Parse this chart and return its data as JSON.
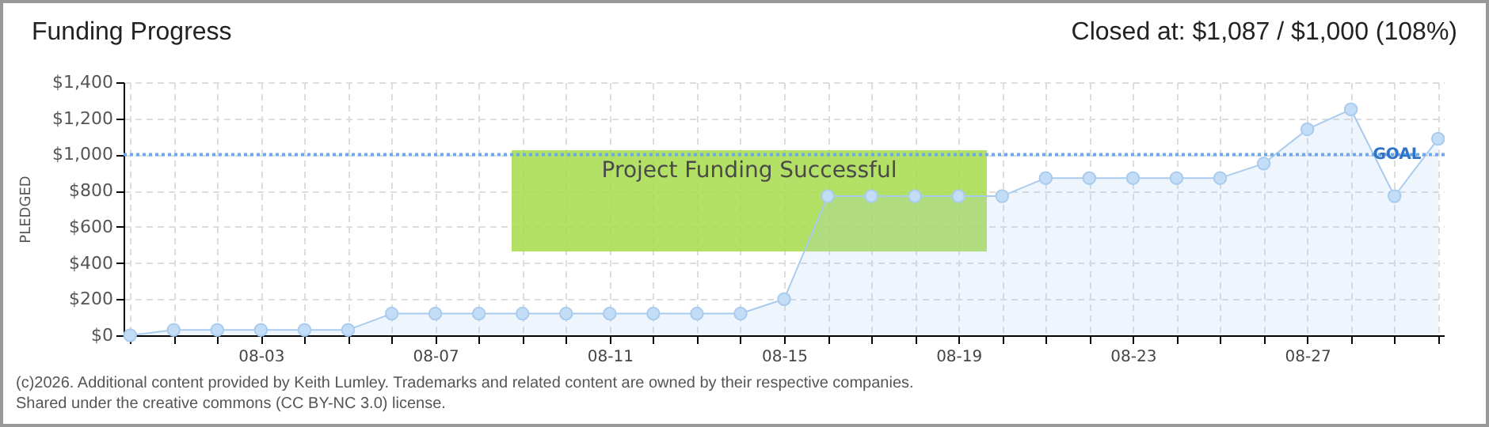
{
  "chart_data": {
    "type": "area",
    "title": "Funding Progress",
    "subtitle": "Closed at: $1,087 / $1,000 (108%)",
    "ylabel": "PLEDGED",
    "categories": [
      null,
      null,
      null,
      "08-03",
      null,
      null,
      null,
      "08-07",
      null,
      null,
      null,
      "08-11",
      null,
      null,
      null,
      "08-15",
      null,
      null,
      null,
      "08-19",
      null,
      null,
      null,
      "08-23",
      null,
      null,
      null,
      "08-27",
      null,
      null,
      null
    ],
    "series": [
      {
        "color": "#a9cbee",
        "values": [
          0,
          30,
          30,
          30,
          30,
          30,
          120,
          120,
          120,
          120,
          120,
          120,
          120,
          120,
          120,
          200,
          770,
          770,
          770,
          770,
          770,
          870,
          870,
          870,
          870,
          870,
          950,
          1140,
          1250,
          770,
          1087
        ]
      }
    ],
    "ylim": [
      0,
      1400
    ],
    "yticks": [
      {
        "value": 0,
        "label": "$0"
      },
      {
        "value": 200,
        "label": "$200"
      },
      {
        "value": 400,
        "label": "$400"
      },
      {
        "value": 600,
        "label": "$600"
      },
      {
        "value": 800,
        "label": "$800"
      },
      {
        "value": 1000,
        "label": "$1,000"
      },
      {
        "value": 1200,
        "label": "$1,200"
      },
      {
        "value": 1400,
        "label": "$1,400"
      }
    ],
    "ref_lines": [
      {
        "axis": "y",
        "value": 1000,
        "label": "GOAL",
        "color": "#6fa8e8",
        "line_style": "dotted"
      }
    ],
    "grid": true,
    "marker": "circle",
    "annotations": [
      "Project Funding Successful",
      "(c)2026. Additional content provided by Keith Lumley. Trademarks and related content are owned by their respective companies.",
      "Shared under the creative commons (CC BY-NC 3.0) license."
    ]
  }
}
